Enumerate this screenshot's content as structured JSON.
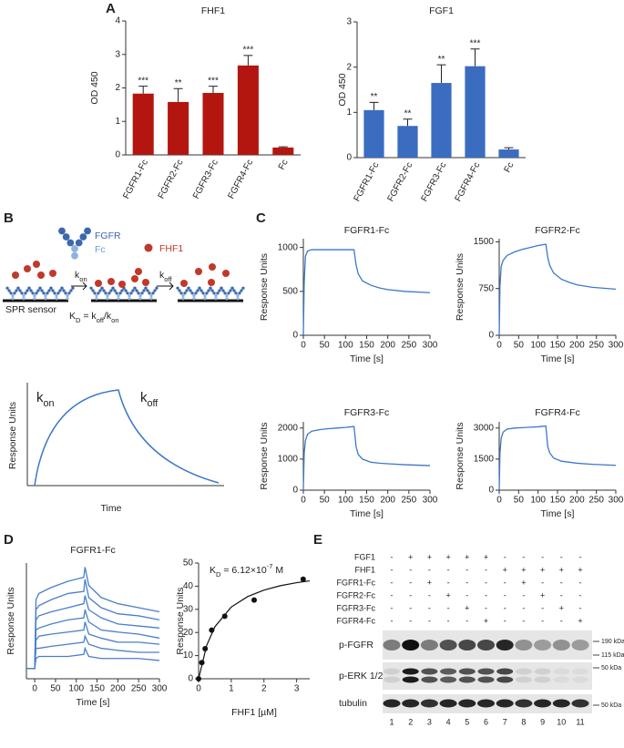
{
  "panel_labels": [
    "A",
    "B",
    "C",
    "D",
    "E"
  ],
  "chart_data": [
    {
      "type": "bar",
      "title": "FHF1",
      "y_label": "OD 450",
      "categories": [
        "FGFR1-Fc",
        "FGFR2-Fc",
        "FGFR3-Fc",
        "FGFR4-Fc",
        "Fc"
      ],
      "values": [
        1.83,
        1.58,
        1.85,
        2.67,
        0.22
      ],
      "errors": [
        0.22,
        0.4,
        0.2,
        0.3,
        0.02
      ],
      "annotations": [
        "***",
        "**",
        "***",
        "***",
        null
      ],
      "color": "#b3160f",
      "ylim": [
        0,
        4
      ],
      "yticks": [
        0,
        1,
        2,
        3,
        4
      ]
    },
    {
      "type": "bar",
      "title": "FGF1",
      "y_label": "OD 450",
      "categories": [
        "FGFR1-Fc",
        "FGFR2-Fc",
        "FGFR3-Fc",
        "FGFR4-Fc",
        "Fc"
      ],
      "values": [
        1.05,
        0.7,
        1.65,
        2.02,
        0.18
      ],
      "errors": [
        0.17,
        0.15,
        0.4,
        0.38,
        0.04
      ],
      "annotations": [
        "**",
        "**",
        "**",
        "***",
        null
      ],
      "color": "#3a6cc0",
      "ylim": [
        0,
        3
      ],
      "yticks": [
        0,
        1,
        2,
        3
      ]
    },
    {
      "type": "line",
      "title": "FGFR1-Fc",
      "y_label": "Response Units",
      "x_label": "Time [s]",
      "x": [
        0,
        2,
        5,
        10,
        20,
        40,
        60,
        80,
        100,
        120,
        125,
        130,
        140,
        160,
        180,
        200,
        240,
        300
      ],
      "series": [
        {
          "color": "#3b78c9",
          "values": [
            0,
            600,
            900,
            960,
            975,
            975,
            975,
            975,
            975,
            975,
            800,
            700,
            620,
            570,
            540,
            520,
            500,
            485
          ]
        }
      ],
      "xlim": [
        0,
        300
      ],
      "xticks": [
        0,
        50,
        100,
        150,
        200,
        250,
        300
      ],
      "ylim": [
        0,
        1100
      ],
      "yticks": [
        0,
        500,
        1000
      ]
    },
    {
      "type": "line",
      "title": "FGFR2-Fc",
      "y_label": "Response Units",
      "x_label": "Time [s]",
      "x": [
        0,
        2,
        5,
        10,
        20,
        40,
        60,
        80,
        100,
        120,
        125,
        130,
        140,
        160,
        180,
        200,
        240,
        300
      ],
      "series": [
        {
          "color": "#3b78c9",
          "values": [
            0,
            800,
            1100,
            1200,
            1280,
            1340,
            1380,
            1410,
            1440,
            1460,
            1250,
            1120,
            1000,
            900,
            850,
            810,
            770,
            740
          ]
        }
      ],
      "xlim": [
        0,
        300
      ],
      "xticks": [
        0,
        50,
        100,
        150,
        200,
        250,
        300
      ],
      "ylim": [
        0,
        1550
      ],
      "yticks": [
        0,
        750,
        1500
      ]
    },
    {
      "type": "line",
      "title": "FGFR3-Fc",
      "y_label": "Response Units",
      "x_label": "Time [s]",
      "x": [
        0,
        2,
        5,
        10,
        20,
        40,
        60,
        80,
        100,
        120,
        125,
        130,
        140,
        160,
        180,
        200,
        240,
        300
      ],
      "series": [
        {
          "color": "#3b78c9",
          "values": [
            0,
            1200,
            1600,
            1800,
            1900,
            1950,
            1980,
            2000,
            2020,
            2050,
            1400,
            1150,
            1000,
            900,
            870,
            850,
            820,
            790
          ]
        }
      ],
      "xlim": [
        0,
        300
      ],
      "xticks": [
        0,
        50,
        100,
        150,
        200,
        250,
        300
      ],
      "ylim": [
        0,
        2200
      ],
      "yticks": [
        0,
        1000,
        2000
      ]
    },
    {
      "type": "line",
      "title": "FGFR4-Fc",
      "y_label": "Response Units",
      "x_label": "Time [s]",
      "x": [
        0,
        2,
        5,
        10,
        20,
        40,
        60,
        80,
        100,
        120,
        125,
        130,
        140,
        160,
        180,
        200,
        240,
        300
      ],
      "series": [
        {
          "color": "#3b78c9",
          "values": [
            0,
            1800,
            2500,
            2800,
            2950,
            3000,
            3020,
            3040,
            3060,
            3100,
            2100,
            1800,
            1550,
            1400,
            1350,
            1300,
            1250,
            1200
          ]
        }
      ],
      "xlim": [
        0,
        300
      ],
      "xticks": [
        0,
        50,
        100,
        150,
        200,
        250,
        300
      ],
      "ylim": [
        0,
        3300
      ],
      "yticks": [
        0,
        1500,
        3000
      ]
    },
    {
      "type": "line",
      "title": "FGFR1-Fc",
      "y_label": "Response Units",
      "x_label": "Time [s]",
      "x": [
        -20,
        0,
        3,
        10,
        40,
        80,
        118,
        121,
        130,
        160,
        200,
        250,
        300
      ],
      "series": [
        {
          "color": "#4a7fc8",
          "values": [
            0,
            0,
            34,
            37,
            40,
            43,
            45,
            50,
            41,
            35,
            32,
            30,
            28
          ]
        },
        {
          "color": "#4a7fc8",
          "values": [
            0,
            0,
            29,
            31,
            34,
            37,
            38,
            44,
            35,
            30,
            27,
            26,
            24
          ]
        },
        {
          "color": "#4a7fc8",
          "values": [
            0,
            0,
            24,
            26,
            28,
            30,
            32,
            36,
            29,
            25,
            22,
            21,
            20
          ]
        },
        {
          "color": "#4a7fc8",
          "values": [
            0,
            0,
            19,
            20,
            22,
            24,
            25,
            29,
            23,
            19,
            18,
            17,
            15
          ]
        },
        {
          "color": "#4a7fc8",
          "values": [
            0,
            0,
            14,
            16,
            17,
            18,
            19,
            23,
            17,
            15,
            13,
            13,
            12
          ]
        },
        {
          "color": "#4a7fc8",
          "values": [
            0,
            0,
            10,
            10,
            11,
            12,
            13,
            16,
            12,
            10,
            9,
            8,
            8
          ]
        },
        {
          "color": "#4a7fc8",
          "values": [
            0,
            0,
            5,
            6,
            6,
            6,
            7,
            10,
            6,
            5,
            5,
            5,
            4
          ]
        }
      ],
      "xlim": [
        -20,
        300
      ],
      "xticks": [
        0,
        50,
        100,
        150,
        200,
        250,
        300
      ],
      "ylim": [
        -5,
        52
      ]
    },
    {
      "type": "scatter",
      "y_label": "Response Units",
      "x_label": "FHF1 [µM]",
      "x": [
        0,
        0.1,
        0.2,
        0.4,
        0.8,
        1.7,
        3.2
      ],
      "values": [
        0,
        7,
        13,
        21,
        27,
        34,
        43
      ],
      "color": "#111111",
      "fit": {
        "x": [
          0,
          0.25,
          0.5,
          1,
          1.5,
          2,
          2.5,
          3,
          3.4
        ],
        "values": [
          0,
          14.5,
          22.5,
          31,
          35.5,
          38.3,
          40.2,
          41.5,
          42.3
        ]
      },
      "annotation": [
        {
          "t": "K"
        },
        {
          "sub": "D"
        },
        {
          "t": " = 6.12×10"
        },
        {
          "sup": "-7"
        },
        {
          "t": " M"
        }
      ],
      "xlim": [
        0,
        3.4
      ],
      "xticks": [
        0,
        1,
        2,
        3
      ],
      "ylim": [
        0,
        50
      ],
      "yticks": [
        0,
        10,
        20,
        30,
        40,
        50
      ]
    }
  ],
  "diagram": {
    "receptor": "FGFR",
    "fc": "Fc",
    "ligand": "FHF1",
    "sensor": "SPR sensor",
    "kon": [
      {
        "t": "k"
      },
      {
        "sub": "on"
      }
    ],
    "koff": [
      {
        "t": "k"
      },
      {
        "sub": "off"
      }
    ],
    "kd": [
      {
        "t": "K"
      },
      {
        "sub": "D"
      },
      {
        "t": " = k"
      },
      {
        "sub": "off"
      },
      {
        "t": "/k"
      },
      {
        "sub": "on"
      }
    ],
    "sensorgram": {
      "kon": [
        {
          "t": "k"
        },
        {
          "sub": "on"
        }
      ],
      "koff": [
        {
          "t": "k"
        },
        {
          "sub": "off"
        }
      ],
      "y_label": "Response Units",
      "x_label": "Time"
    }
  },
  "blot": {
    "conditions": [
      {
        "label": "FGF1",
        "signs": [
          "-",
          "+",
          "+",
          "+",
          "+",
          "+",
          "-",
          "-",
          "-",
          "-",
          "-"
        ]
      },
      {
        "label": "FHF1",
        "signs": [
          "-",
          "-",
          "-",
          "-",
          "-",
          "-",
          "+",
          "+",
          "+",
          "+",
          "+"
        ]
      },
      {
        "label": "FGFR1-Fc",
        "signs": [
          "-",
          "-",
          "+",
          "-",
          "-",
          "-",
          "-",
          "+",
          "-",
          "-",
          "-"
        ]
      },
      {
        "label": "FGFR2-Fc",
        "signs": [
          "-",
          "-",
          "-",
          "+",
          "-",
          "-",
          "-",
          "-",
          "+",
          "-",
          "-"
        ]
      },
      {
        "label": "FGFR3-Fc",
        "signs": [
          "-",
          "-",
          "-",
          "-",
          "+",
          "-",
          "-",
          "-",
          "-",
          "+",
          "-"
        ]
      },
      {
        "label": "FGFR4-Fc",
        "signs": [
          "-",
          "-",
          "-",
          "-",
          "-",
          "+",
          "-",
          "-",
          "-",
          "-",
          "+"
        ]
      }
    ],
    "rows": [
      "p-FGFR",
      "p-ERK 1/2",
      "tubulin"
    ],
    "markers": [
      "190 kDa",
      "115 kDa",
      "50 kDa",
      "50 kDa"
    ],
    "lanes": [
      "1",
      "2",
      "3",
      "4",
      "5",
      "6",
      "7",
      "8",
      "9",
      "10",
      "11"
    ]
  }
}
